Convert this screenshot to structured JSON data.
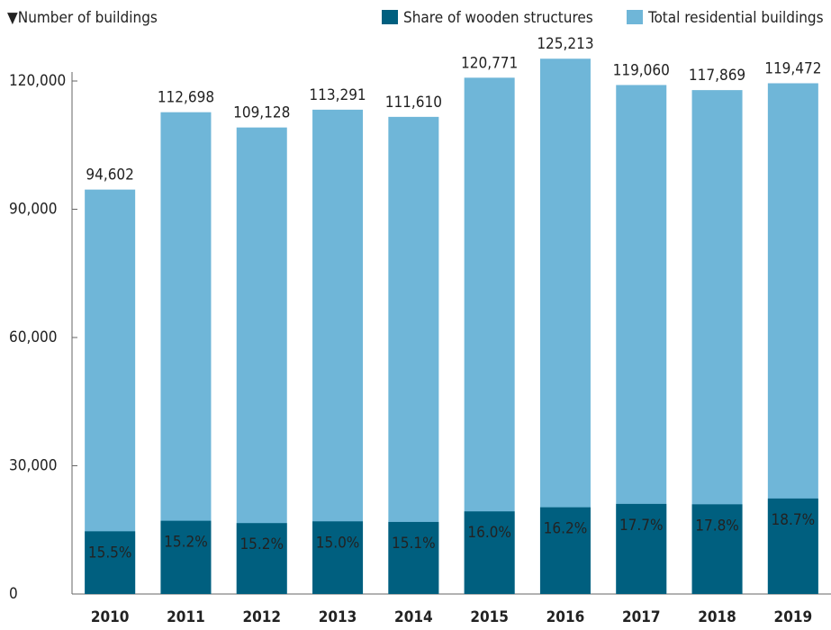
{
  "chart_data": {
    "type": "bar",
    "y_axis_label": "▼Number of buildings",
    "categories": [
      "2010",
      "2011",
      "2012",
      "2013",
      "2014",
      "2015",
      "2016",
      "2017",
      "2018",
      "2019"
    ],
    "series": [
      {
        "name": "Share of wooden structures",
        "color": "#005f7f",
        "values": [
          15.5,
          15.2,
          15.2,
          15.0,
          15.1,
          16.0,
          16.2,
          17.7,
          17.8,
          18.7
        ],
        "value_labels": [
          "15.5%",
          "15.2%",
          "15.2%",
          "15.0%",
          "15.1%",
          "16.0%",
          "16.2%",
          "17.7%",
          "17.8%",
          "18.7%"
        ]
      },
      {
        "name": "Total residential buildings",
        "color": "#6fb6d8",
        "values": [
          94602,
          112698,
          109128,
          113291,
          111610,
          120771,
          125213,
          119060,
          117869,
          119472
        ],
        "value_labels": [
          "94,602",
          "112,698",
          "109,128",
          "113,291",
          "111,610",
          "120,771",
          "125,213",
          "119,060",
          "117,869",
          "119,472"
        ]
      }
    ],
    "ylim": [
      0,
      120000
    ],
    "yticks": [
      0,
      {
        "value": 30000,
        "label": "30,000"
      },
      {
        "value": 60000,
        "label": "60,000"
      },
      {
        "value": 90000,
        "label": "90,000"
      },
      {
        "value": 120000,
        "label": "120,000"
      }
    ],
    "legend": "top-right"
  }
}
